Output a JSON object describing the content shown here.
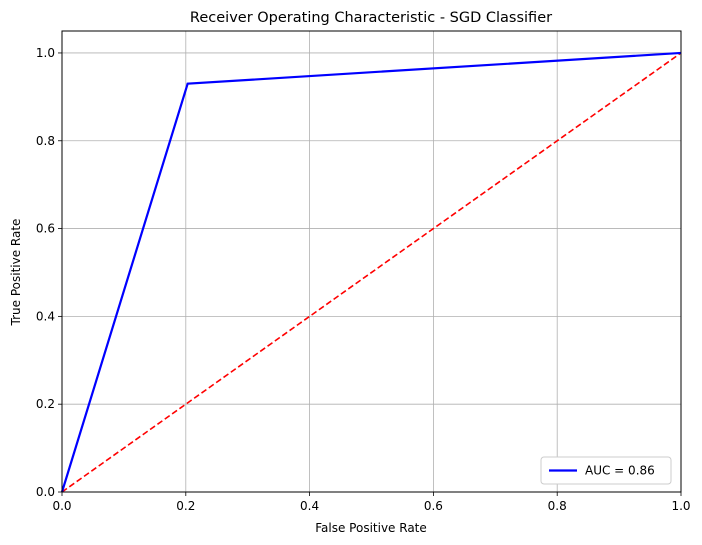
{
  "chart_data": {
    "type": "line",
    "title": "Receiver Operating Characteristic - SGD Classifier",
    "xlabel": "False Positive Rate",
    "ylabel": "True Positive Rate",
    "xlim": [
      0.0,
      1.0
    ],
    "ylim": [
      0.0,
      1.05
    ],
    "grid": true,
    "legend_placement": "lower-right",
    "x_ticks": [
      0.0,
      0.2,
      0.4,
      0.6,
      0.8,
      1.0
    ],
    "x_tick_labels": [
      "0.0",
      "0.2",
      "0.4",
      "0.6",
      "0.8",
      "1.0"
    ],
    "y_ticks": [
      0.0,
      0.2,
      0.4,
      0.6,
      0.8,
      1.0
    ],
    "y_tick_labels": [
      "0.0",
      "0.2",
      "0.4",
      "0.6",
      "0.8",
      "1.0"
    ],
    "series": [
      {
        "name": "AUC = 0.86",
        "color": "#0000ff",
        "style": "solid",
        "x": [
          0.0,
          0.203,
          1.0
        ],
        "y": [
          0.0,
          0.93,
          1.0
        ]
      },
      {
        "color": "#ff0000",
        "style": "dashed",
        "x": [
          0.0,
          1.0
        ],
        "y": [
          0.0,
          1.0
        ]
      }
    ]
  }
}
